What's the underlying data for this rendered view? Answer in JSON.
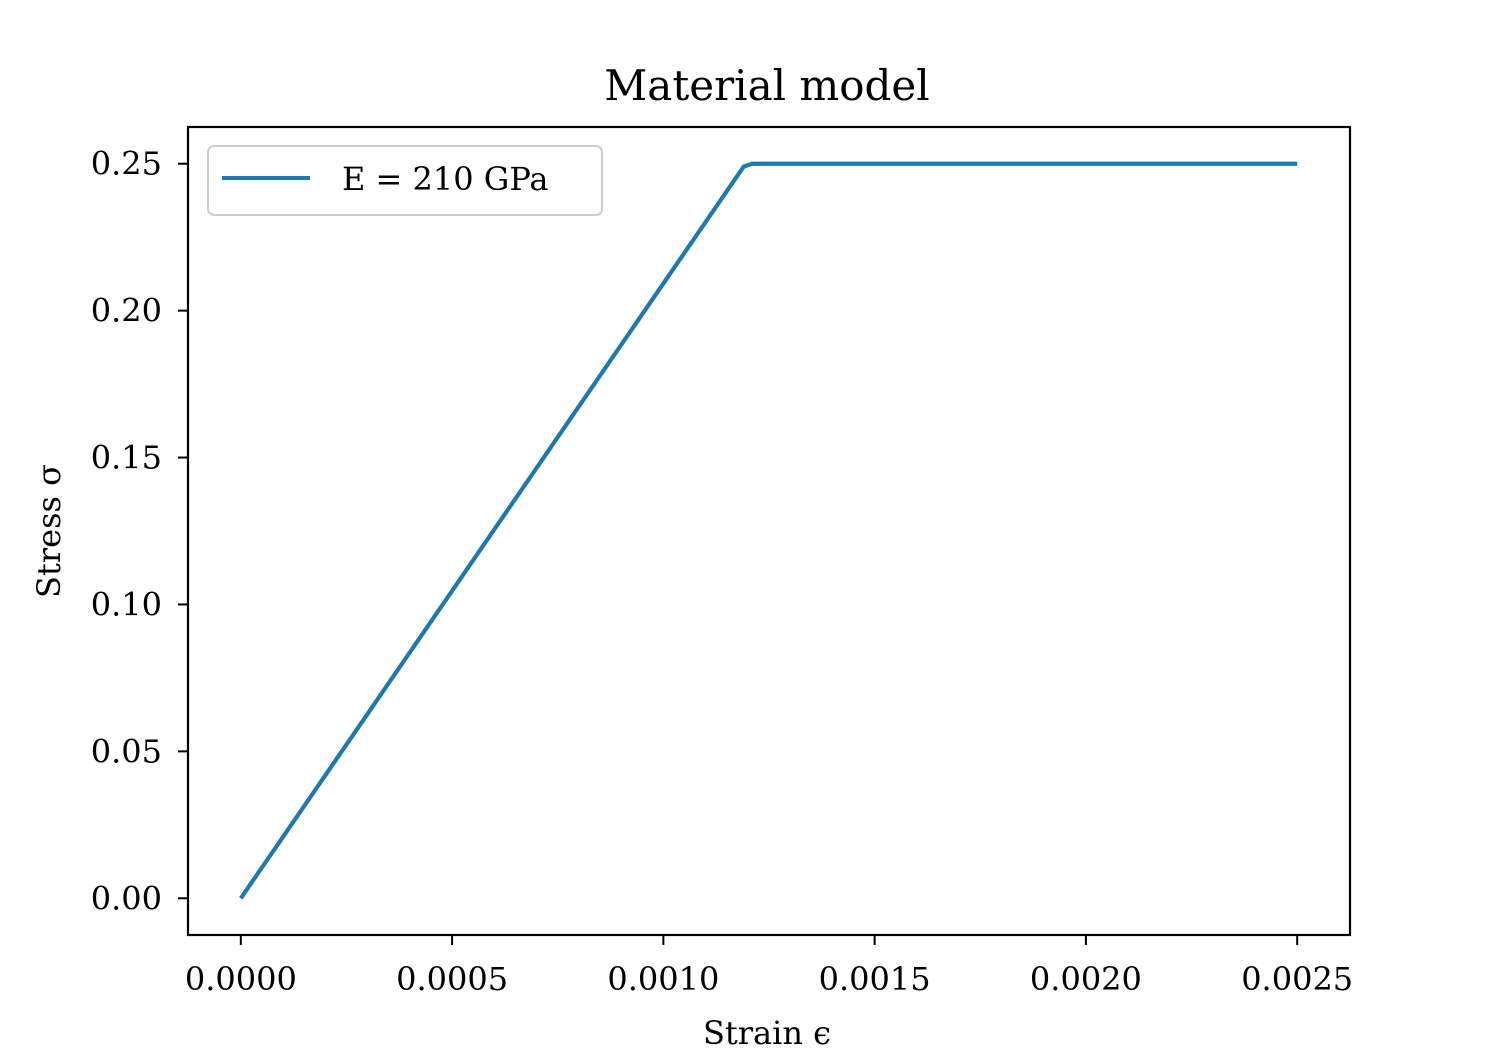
{
  "chart_data": {
    "type": "line",
    "title": "Material model",
    "xlabel": "Strain ϵ",
    "ylabel": "Stress σ",
    "xlim": [
      -0.000125,
      0.002625
    ],
    "ylim": [
      -0.0125,
      0.2625
    ],
    "x_ticks": [
      0.0,
      0.0005,
      0.001,
      0.0015,
      0.002,
      0.0025
    ],
    "x_tick_labels": [
      "0.0000",
      "0.0005",
      "0.0010",
      "0.0015",
      "0.0020",
      "0.0025"
    ],
    "y_ticks": [
      0.0,
      0.05,
      0.1,
      0.15,
      0.2,
      0.25
    ],
    "y_tick_labels": [
      "0.00",
      "0.05",
      "0.10",
      "0.15",
      "0.20",
      "0.25"
    ],
    "grid": false,
    "legend_position": "top-left",
    "series": [
      {
        "name": "E = 210 GPa",
        "color": "#1f77b4",
        "x": [
          0.0,
          0.00119,
          0.00121,
          0.0025
        ],
        "y": [
          0.0,
          0.249,
          0.25,
          0.25
        ]
      }
    ]
  }
}
